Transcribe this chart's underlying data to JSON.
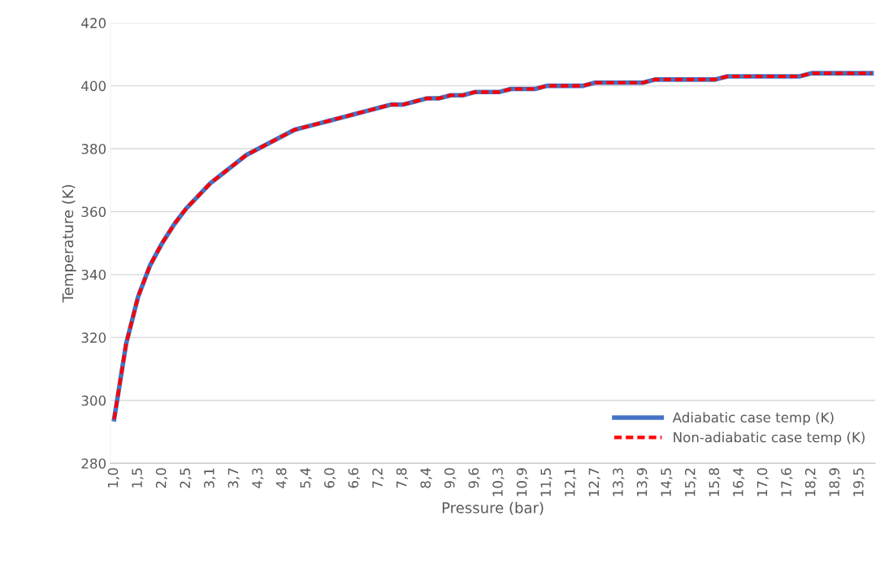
{
  "chart_data": {
    "type": "line",
    "xlabel": "Pressure (bar)",
    "ylabel": "Temperature (K)",
    "categories": [
      "1,0",
      null,
      "1,5",
      null,
      "2,0",
      null,
      "2,5",
      null,
      "3,1",
      null,
      "3,7",
      null,
      "4,3",
      null,
      "4,8",
      null,
      "5,4",
      null,
      "6,0",
      null,
      "6,6",
      null,
      "7,2",
      null,
      "7,8",
      null,
      "8,4",
      null,
      "9,0",
      null,
      "9,6",
      null,
      "10,3",
      null,
      "10,9",
      null,
      "11,5",
      null,
      "12,1",
      null,
      "12,7",
      null,
      "13,3",
      null,
      "13,9",
      null,
      "14,5",
      null,
      "15,2",
      null,
      "15,8",
      null,
      "16,4",
      null,
      "17,0",
      null,
      "17,6",
      null,
      "18,2",
      null,
      "18,9",
      null,
      "19,5",
      null
    ],
    "series": [
      {
        "name": "Adiabatic case temp (K)",
        "color": "#4472c4",
        "line_style": "solid",
        "values": [
          294,
          318,
          333,
          343,
          350,
          356,
          361,
          365,
          369,
          372,
          375,
          378,
          380,
          382,
          384,
          386,
          387,
          388,
          389,
          390,
          391,
          392,
          393,
          394,
          394,
          395,
          396,
          396,
          397,
          397,
          398,
          398,
          398,
          399,
          399,
          399,
          400,
          400,
          400,
          400,
          401,
          401,
          401,
          401,
          401,
          402,
          402,
          402,
          402,
          402,
          402,
          403,
          403,
          403,
          403,
          403,
          403,
          403,
          404,
          404,
          404,
          404,
          404,
          404
        ]
      },
      {
        "name": "Non-adiabatic case temp (K)",
        "color": "#ff0000",
        "line_style": "dashed",
        "values": [
          294,
          318,
          333,
          343,
          350,
          356,
          361,
          365,
          369,
          372,
          375,
          378,
          380,
          382,
          384,
          386,
          387,
          388,
          389,
          390,
          391,
          392,
          393,
          394,
          394,
          395,
          396,
          396,
          397,
          397,
          398,
          398,
          398,
          399,
          399,
          399,
          400,
          400,
          400,
          400,
          401,
          401,
          401,
          401,
          401,
          402,
          402,
          402,
          402,
          402,
          402,
          403,
          403,
          403,
          403,
          403,
          403,
          403,
          404,
          404,
          404,
          404,
          404,
          404
        ]
      }
    ],
    "ylim": [
      280,
      420
    ],
    "yticks": [
      280,
      300,
      320,
      340,
      360,
      380,
      400,
      420
    ],
    "grid": "y",
    "legend": "bottom right",
    "marker": "none"
  }
}
